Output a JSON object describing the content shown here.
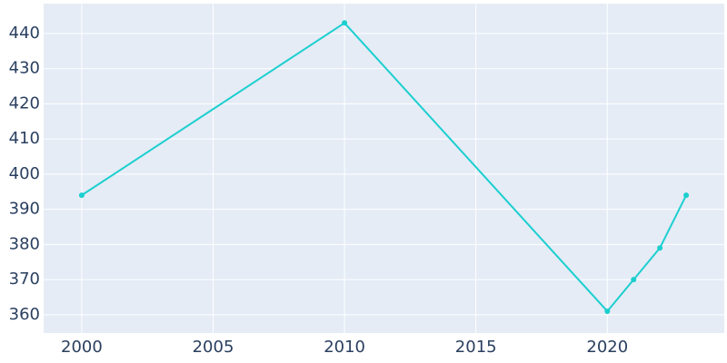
{
  "chart_data": {
    "type": "line",
    "x": [
      2000,
      2010,
      2020,
      2021,
      2022,
      2023
    ],
    "series": [
      {
        "color": "#1ccfcf",
        "values": [
          394,
          443,
          361,
          370,
          379,
          394
        ]
      }
    ],
    "xlim": [
      1998.55,
      2024.45
    ],
    "xticks": [
      2000,
      2005,
      2010,
      2015,
      2020
    ],
    "ylim": [
      354.8,
      448.5
    ],
    "yticks": [
      360,
      370,
      380,
      390,
      400,
      410,
      420,
      430,
      440
    ],
    "grid": true,
    "background": "#e5ecf6"
  }
}
